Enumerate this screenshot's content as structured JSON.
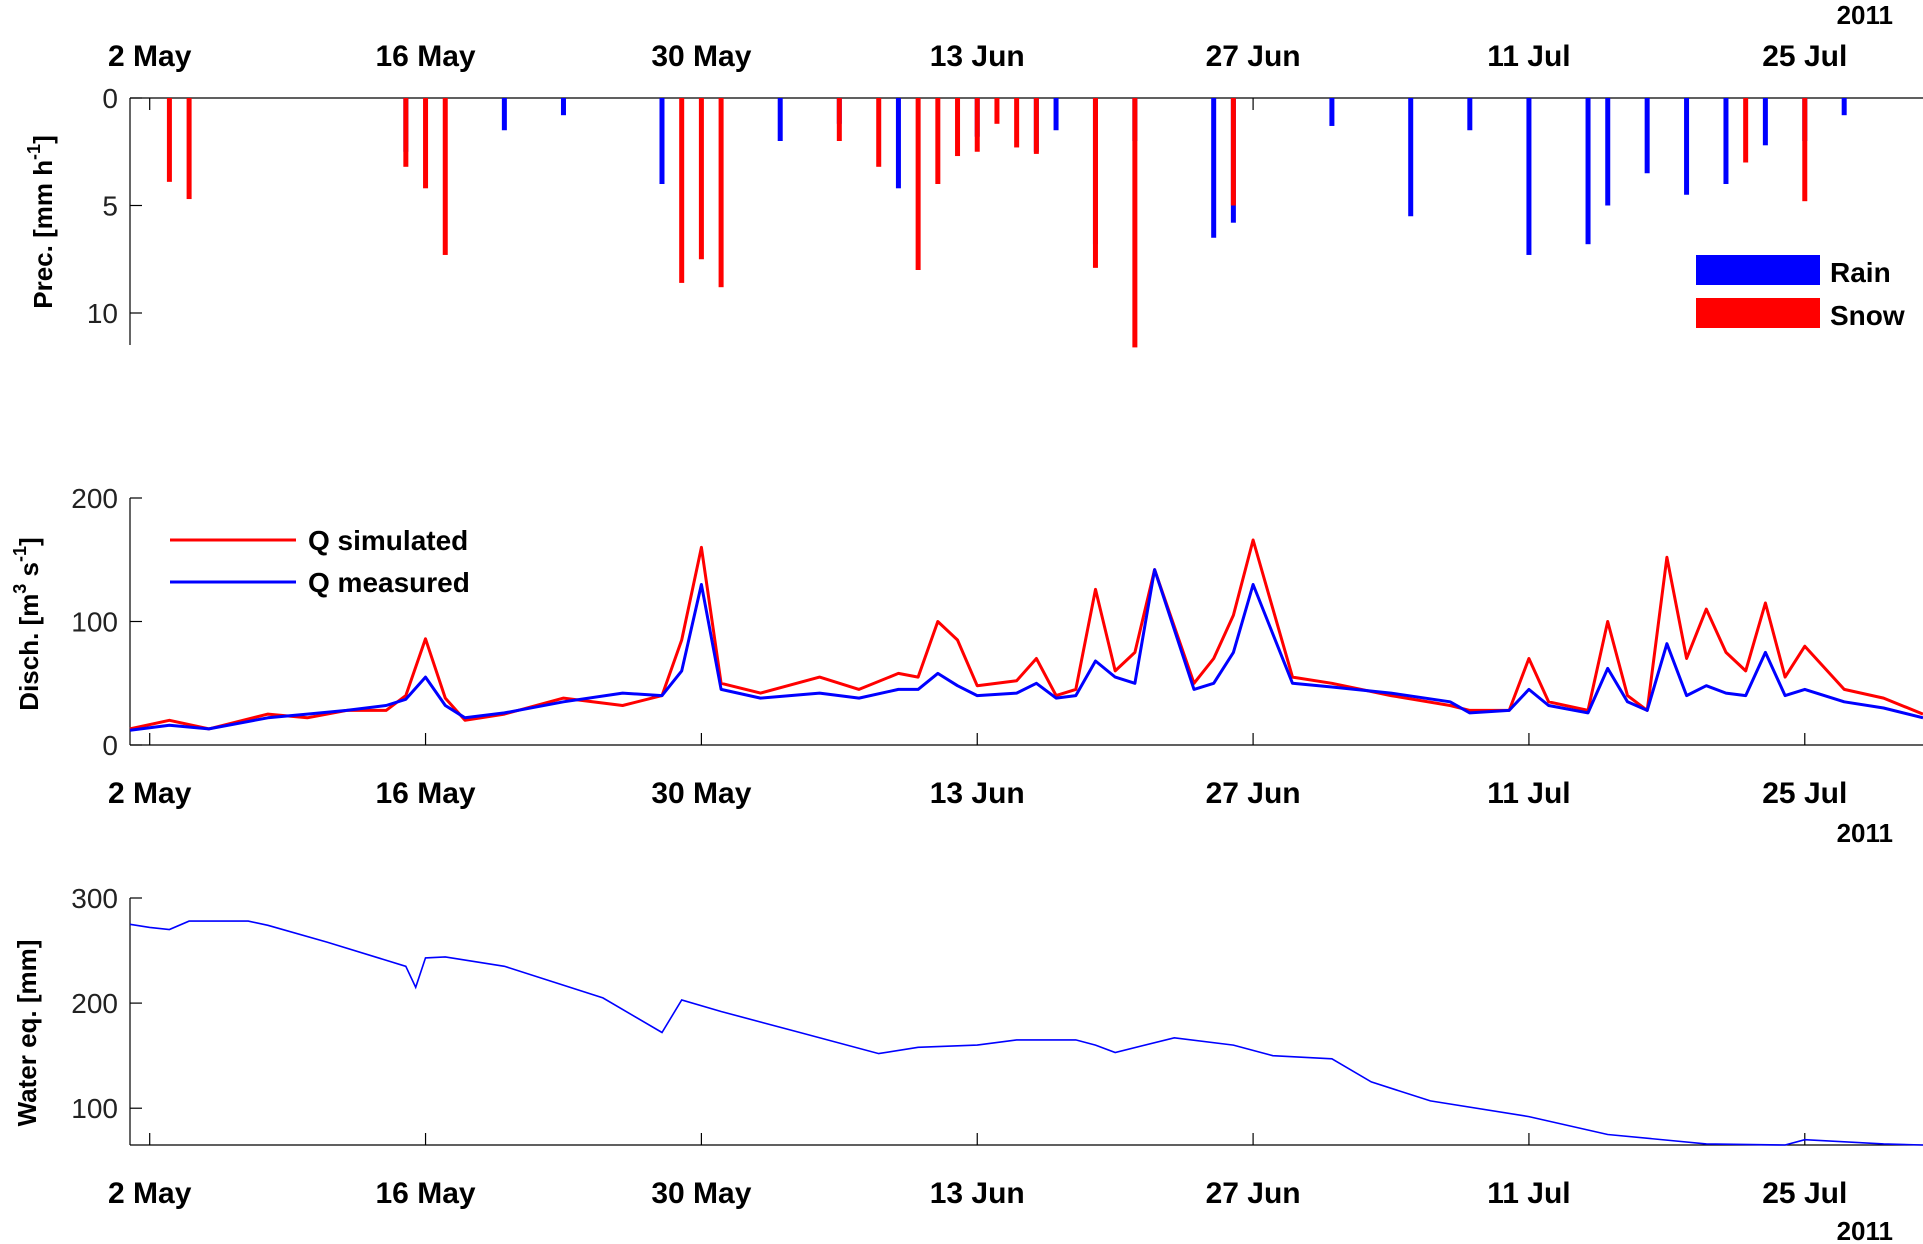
{
  "colors": {
    "rain": "#0000ff",
    "snow": "#ff0000",
    "q_simulated": "#ff0000",
    "q_measured": "#0000ff",
    "swe": "#0000ff"
  },
  "date_ticks": [
    "2 May",
    "16 May",
    "30 May",
    "13 Jun",
    "27 Jun",
    "11 Jul",
    "25 Jul"
  ],
  "year": "2011",
  "chart_data": [
    {
      "type": "bar",
      "id": "precipitation",
      "ylabel": "Prec.  [mm h^-1]",
      "ylabel_parts": {
        "main": "Prec.  [mm h",
        "sup": "-1",
        "end": "]"
      },
      "y_inverted": true,
      "ylim": [
        0,
        11.5
      ],
      "yticks": [
        0,
        5,
        10
      ],
      "xlim": [
        "2011-05-01",
        "2011-07-31"
      ],
      "legend": {
        "position": "right",
        "entries": [
          "Rain",
          "Snow"
        ]
      },
      "series": [
        {
          "name": "Rain",
          "x": [
            "2011-05-15",
            "2011-05-20",
            "2011-05-23",
            "2011-05-28",
            "2011-06-03",
            "2011-06-06",
            "2011-06-09",
            "2011-06-13",
            "2011-06-16",
            "2011-06-17",
            "2011-06-19",
            "2011-06-21",
            "2011-06-25",
            "2011-06-26",
            "2011-07-01",
            "2011-07-05",
            "2011-07-08",
            "2011-07-11",
            "2011-07-14",
            "2011-07-15",
            "2011-07-17",
            "2011-07-19",
            "2011-07-21",
            "2011-07-23",
            "2011-07-25",
            "2011-07-27"
          ],
          "values": [
            2.5,
            1.5,
            0.8,
            4.0,
            2.0,
            1.2,
            4.2,
            1.8,
            2.5,
            1.5,
            6.8,
            2.0,
            6.5,
            5.8,
            1.3,
            5.5,
            1.5,
            7.3,
            6.8,
            5.0,
            3.5,
            4.5,
            4.0,
            2.2,
            2.0,
            0.8
          ]
        },
        {
          "name": "Snow",
          "x": [
            "2011-05-03",
            "2011-05-04",
            "2011-05-15",
            "2011-05-16",
            "2011-05-17",
            "2011-05-29",
            "2011-05-30",
            "2011-05-31",
            "2011-06-06",
            "2011-06-08",
            "2011-06-10",
            "2011-06-11",
            "2011-06-12",
            "2011-06-13",
            "2011-06-14",
            "2011-06-15",
            "2011-06-16",
            "2011-06-19",
            "2011-06-21",
            "2011-06-26",
            "2011-07-22",
            "2011-07-25"
          ],
          "values": [
            3.9,
            4.7,
            3.2,
            4.2,
            7.3,
            8.6,
            7.5,
            8.8,
            2.0,
            3.2,
            8.0,
            4.0,
            2.7,
            2.5,
            1.2,
            2.3,
            2.6,
            7.9,
            11.6,
            5.0,
            3.0,
            4.8
          ]
        }
      ]
    },
    {
      "type": "line",
      "id": "discharge",
      "ylabel": "Disch.  [m^3 s^-1]",
      "ylabel_parts": {
        "main": "Disch.  [m",
        "sup1": "3",
        "mid": " s",
        "sup2": "-1",
        "end": "]"
      },
      "ylim": [
        0,
        200
      ],
      "yticks": [
        0,
        100,
        200
      ],
      "xlim": [
        "2011-05-01",
        "2011-07-31"
      ],
      "legend": {
        "position": "top-left",
        "entries": [
          "Q simulated",
          "Q measured"
        ]
      },
      "series": [
        {
          "name": "Q simulated",
          "x": [
            "2011-05-01",
            "2011-05-03",
            "2011-05-05",
            "2011-05-08",
            "2011-05-10",
            "2011-05-12",
            "2011-05-14",
            "2011-05-15",
            "2011-05-16",
            "2011-05-17",
            "2011-05-18",
            "2011-05-20",
            "2011-05-23",
            "2011-05-26",
            "2011-05-28",
            "2011-05-29",
            "2011-05-30",
            "2011-05-31",
            "2011-06-02",
            "2011-06-05",
            "2011-06-07",
            "2011-06-09",
            "2011-06-10",
            "2011-06-11",
            "2011-06-12",
            "2011-06-13",
            "2011-06-15",
            "2011-06-16",
            "2011-06-17",
            "2011-06-18",
            "2011-06-19",
            "2011-06-20",
            "2011-06-21",
            "2011-06-22",
            "2011-06-24",
            "2011-06-25",
            "2011-06-26",
            "2011-06-27",
            "2011-06-29",
            "2011-07-01",
            "2011-07-04",
            "2011-07-07",
            "2011-07-08",
            "2011-07-10",
            "2011-07-11",
            "2011-07-12",
            "2011-07-14",
            "2011-07-15",
            "2011-07-16",
            "2011-07-17",
            "2011-07-18",
            "2011-07-19",
            "2011-07-20",
            "2011-07-21",
            "2011-07-22",
            "2011-07-23",
            "2011-07-24",
            "2011-07-25",
            "2011-07-27",
            "2011-07-29",
            "2011-07-31"
          ],
          "values": [
            13,
            20,
            13,
            25,
            22,
            28,
            28,
            40,
            86,
            38,
            20,
            25,
            38,
            32,
            40,
            85,
            160,
            50,
            42,
            55,
            45,
            58,
            55,
            100,
            85,
            48,
            52,
            70,
            40,
            45,
            126,
            60,
            75,
            142,
            50,
            70,
            105,
            166,
            55,
            50,
            40,
            32,
            28,
            28,
            70,
            35,
            28,
            100,
            40,
            28,
            152,
            70,
            110,
            75,
            60,
            115,
            55,
            80,
            45,
            38,
            25
          ]
        },
        {
          "name": "Q measured",
          "x": [
            "2011-05-01",
            "2011-05-03",
            "2011-05-05",
            "2011-05-08",
            "2011-05-10",
            "2011-05-12",
            "2011-05-14",
            "2011-05-15",
            "2011-05-16",
            "2011-05-17",
            "2011-05-18",
            "2011-05-20",
            "2011-05-23",
            "2011-05-26",
            "2011-05-28",
            "2011-05-29",
            "2011-05-30",
            "2011-05-31",
            "2011-06-02",
            "2011-06-05",
            "2011-06-07",
            "2011-06-09",
            "2011-06-10",
            "2011-06-11",
            "2011-06-12",
            "2011-06-13",
            "2011-06-15",
            "2011-06-16",
            "2011-06-17",
            "2011-06-18",
            "2011-06-19",
            "2011-06-20",
            "2011-06-21",
            "2011-06-22",
            "2011-06-24",
            "2011-06-25",
            "2011-06-26",
            "2011-06-27",
            "2011-06-29",
            "2011-07-01",
            "2011-07-04",
            "2011-07-07",
            "2011-07-08",
            "2011-07-10",
            "2011-07-11",
            "2011-07-12",
            "2011-07-14",
            "2011-07-15",
            "2011-07-16",
            "2011-07-17",
            "2011-07-18",
            "2011-07-19",
            "2011-07-20",
            "2011-07-21",
            "2011-07-22",
            "2011-07-23",
            "2011-07-24",
            "2011-07-25",
            "2011-07-27",
            "2011-07-29",
            "2011-07-31"
          ],
          "values": [
            12,
            16,
            13,
            22,
            25,
            28,
            32,
            37,
            55,
            32,
            22,
            26,
            35,
            42,
            40,
            60,
            130,
            45,
            38,
            42,
            38,
            45,
            45,
            58,
            48,
            40,
            42,
            50,
            38,
            40,
            68,
            55,
            50,
            142,
            45,
            50,
            75,
            130,
            50,
            47,
            42,
            35,
            26,
            28,
            45,
            32,
            26,
            62,
            35,
            28,
            82,
            40,
            48,
            42,
            40,
            75,
            40,
            45,
            35,
            30,
            22
          ]
        }
      ]
    },
    {
      "type": "line",
      "id": "snow_water_equivalent",
      "ylabel": "Water eq. [mm]",
      "ylim": [
        65,
        300
      ],
      "yticks": [
        100,
        200,
        300
      ],
      "xlim": [
        "2011-05-01",
        "2011-07-31"
      ],
      "series": [
        {
          "name": "",
          "x": [
            "2011-05-01",
            "2011-05-02",
            "2011-05-03",
            "2011-05-04",
            "2011-05-07",
            "2011-05-08",
            "2011-05-11",
            "2011-05-15",
            "2011-05-15T12",
            "2011-05-16",
            "2011-05-17",
            "2011-05-20",
            "2011-05-25",
            "2011-05-28",
            "2011-05-29",
            "2011-05-31",
            "2011-06-04",
            "2011-06-08",
            "2011-06-10",
            "2011-06-13",
            "2011-06-15",
            "2011-06-18",
            "2011-06-19",
            "2011-06-20",
            "2011-06-23",
            "2011-06-26",
            "2011-06-28",
            "2011-07-01",
            "2011-07-03",
            "2011-07-06",
            "2011-07-11",
            "2011-07-15",
            "2011-07-20",
            "2011-07-24",
            "2011-07-25",
            "2011-07-29",
            "2011-07-31"
          ],
          "values": [
            275,
            272,
            270,
            278,
            278,
            274,
            258,
            235,
            215,
            243,
            244,
            235,
            205,
            172,
            203,
            192,
            172,
            152,
            158,
            160,
            165,
            165,
            160,
            153,
            167,
            160,
            150,
            147,
            125,
            107,
            92,
            75,
            66,
            65,
            70,
            66,
            65
          ]
        }
      ]
    }
  ]
}
